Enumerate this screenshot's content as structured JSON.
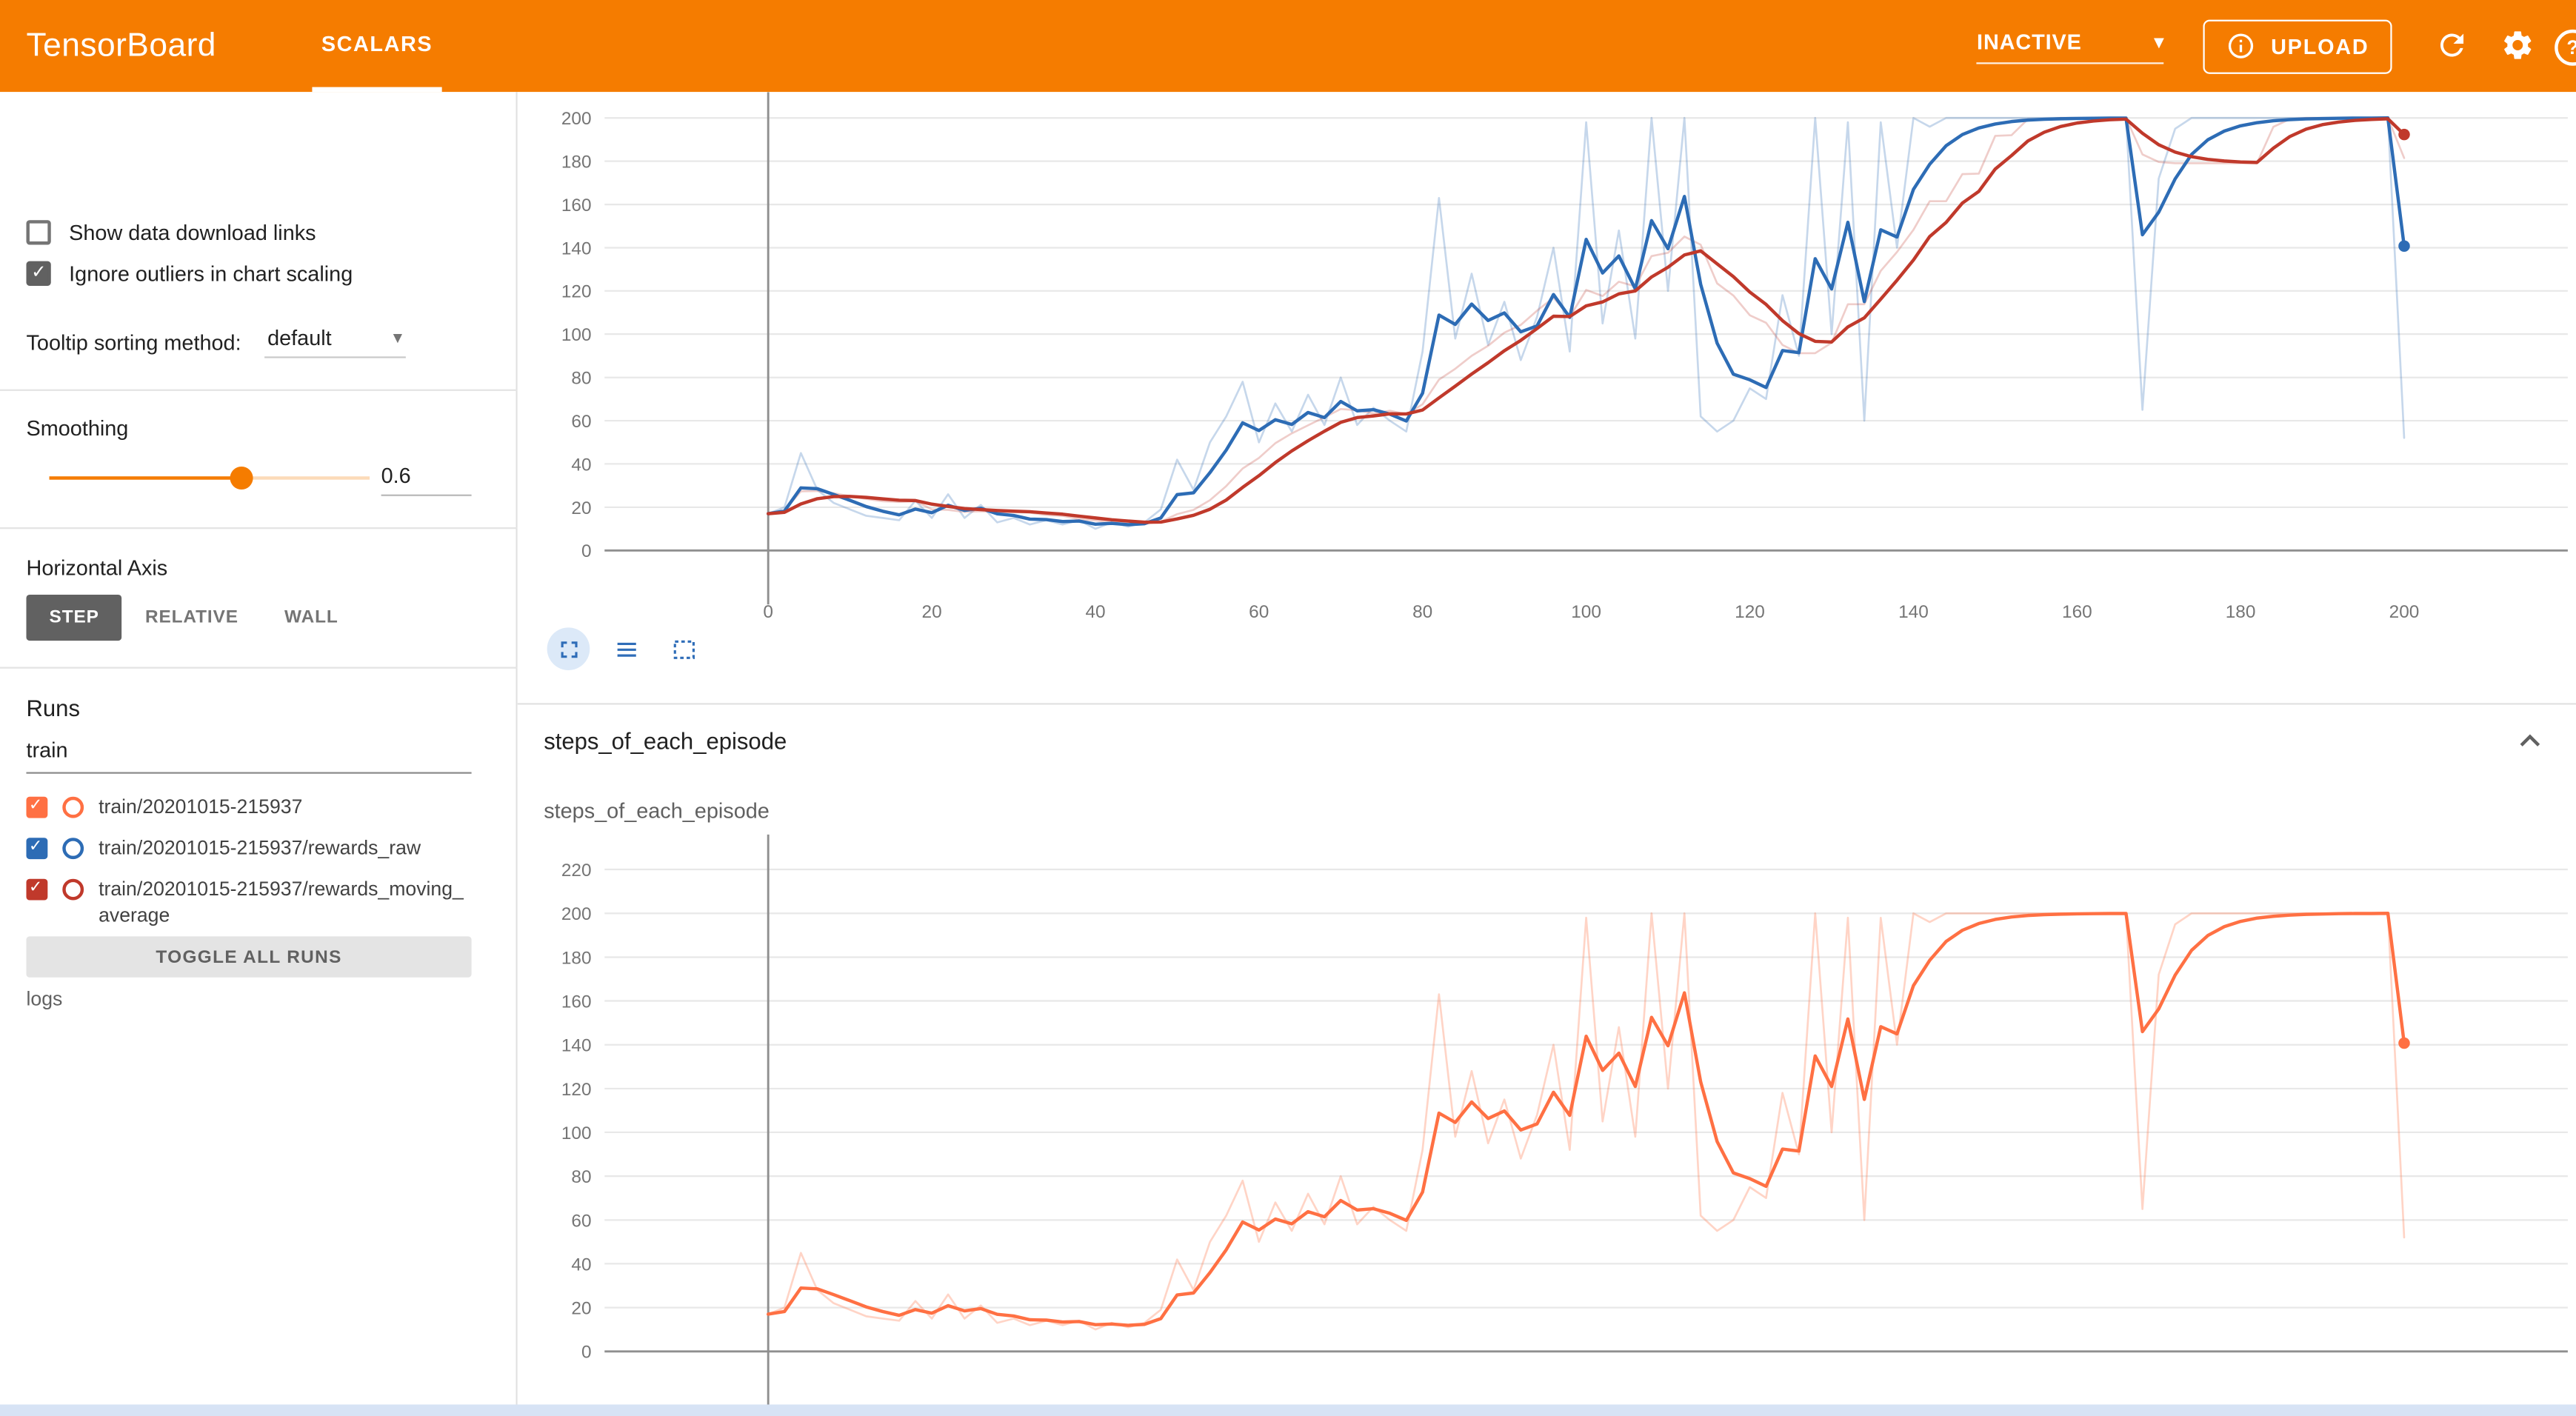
{
  "header": {
    "title": "TensorBoard",
    "tabs": [
      {
        "label": "SCALARS",
        "active": true
      }
    ],
    "status_dropdown": {
      "value": "INACTIVE"
    },
    "upload_button": "UPLOAD",
    "colors": {
      "bar_bg": "#f57c00",
      "bar_text": "#ffffff"
    }
  },
  "sidebar": {
    "show_download_links": {
      "label": "Show data download links",
      "checked": false
    },
    "ignore_outliers": {
      "label": "Ignore outliers in chart scaling",
      "checked": true
    },
    "tooltip_sorting": {
      "label": "Tooltip sorting method:",
      "value": "default"
    },
    "smoothing": {
      "label": "Smoothing",
      "value": "0.6",
      "fraction": 0.6
    },
    "horizontal_axis": {
      "label": "Horizontal Axis",
      "options": [
        "STEP",
        "RELATIVE",
        "WALL"
      ],
      "selected": "STEP"
    },
    "runs": {
      "label": "Runs",
      "filter_value": "train",
      "items": [
        {
          "label": "train/20201015-215937",
          "color": "#ff7043",
          "checked": true
        },
        {
          "label": "train/20201015-215937/rewards_raw",
          "color": "#2d6cb5",
          "checked": true
        },
        {
          "label": "train/20201015-215937/rewards_moving_average",
          "color": "#c0392b",
          "checked": true
        }
      ],
      "toggle_all_label": "TOGGLE ALL RUNS"
    },
    "footer_text": "logs"
  },
  "main": {
    "section_title": "steps_of_each_episode",
    "card_title": "steps_of_each_episode"
  },
  "icons": {
    "caret": "▾",
    "checkmark": "✓",
    "help": "?"
  },
  "chart_data": [
    {
      "type": "line",
      "title": "",
      "xlim": [
        -20,
        220
      ],
      "ylim": [
        -25,
        212
      ],
      "xticks": [
        0,
        20,
        40,
        60,
        80,
        100,
        120,
        140,
        160,
        180,
        200
      ],
      "yticks": [
        0,
        20,
        40,
        60,
        80,
        100,
        120,
        140,
        160,
        180,
        200
      ],
      "show_x_labels": true,
      "grid": true,
      "legend": "none",
      "smoothing": 0.6,
      "x": [
        0,
        2,
        4,
        6,
        8,
        10,
        12,
        14,
        16,
        18,
        20,
        22,
        24,
        26,
        28,
        30,
        32,
        34,
        36,
        38,
        40,
        42,
        44,
        46,
        48,
        50,
        52,
        54,
        56,
        58,
        60,
        62,
        64,
        66,
        68,
        70,
        72,
        74,
        76,
        78,
        80,
        82,
        84,
        86,
        88,
        90,
        92,
        94,
        96,
        98,
        100,
        102,
        104,
        106,
        108,
        110,
        112,
        114,
        116,
        118,
        120,
        122,
        124,
        126,
        128,
        130,
        132,
        134,
        136,
        138,
        140,
        142,
        144,
        146,
        148,
        150,
        152,
        154,
        156,
        158,
        160,
        162,
        164,
        166,
        168,
        170,
        172,
        174,
        176,
        178,
        180,
        182,
        184,
        186,
        188,
        190,
        192,
        194,
        196,
        198,
        200
      ],
      "raw_y": [
        17,
        20,
        45,
        28,
        22,
        19,
        16,
        15,
        14,
        23,
        15,
        26,
        15,
        21,
        13,
        15,
        12,
        14,
        12,
        14,
        10,
        13,
        11,
        13,
        19,
        42,
        28,
        50,
        62,
        78,
        50,
        68,
        55,
        72,
        58,
        80,
        58,
        66,
        60,
        55,
        92,
        163,
        98,
        128,
        95,
        115,
        88,
        108,
        140,
        92,
        198,
        105,
        148,
        98,
        200,
        120,
        200,
        62,
        55,
        60,
        75,
        70,
        118,
        90,
        200,
        100,
        198,
        60,
        198,
        140,
        200,
        196,
        200,
        200,
        200,
        200,
        200,
        200,
        200,
        200,
        200,
        200,
        200,
        200,
        65,
        172,
        195,
        200,
        200,
        200,
        200,
        200,
        200,
        200,
        200,
        200,
        200,
        200,
        200,
        200,
        52
      ],
      "series": [
        {
          "name": "train/20201015-215937/rewards_raw (unsmoothed)",
          "color": "#2d6cb5",
          "opacity": 0.27,
          "width": 1.2
        },
        {
          "name": "train/20201015-215937/rewards_moving_average (unsmoothed)",
          "color": "#c0392b",
          "opacity": 0.25,
          "width": 1.2,
          "window": 8
        },
        {
          "name": "train/20201015-215937/rewards_raw",
          "color": "#2d6cb5",
          "opacity": 1,
          "width": 2,
          "smoothed": true,
          "end_dot": true
        },
        {
          "name": "train/20201015-215937/rewards_moving_average",
          "color": "#c0392b",
          "opacity": 1,
          "width": 2,
          "window": 8,
          "smoothed": true,
          "end_dot": true
        }
      ]
    },
    {
      "type": "line",
      "title": "steps_of_each_episode",
      "xlim": [
        -20,
        220
      ],
      "ylim": [
        -28,
        236
      ],
      "xticks": [
        0,
        20,
        40,
        60,
        80,
        100,
        120,
        140,
        160,
        180,
        200
      ],
      "yticks": [
        0,
        20,
        40,
        60,
        80,
        100,
        120,
        140,
        160,
        180,
        200,
        220
      ],
      "show_x_labels": false,
      "grid": true,
      "legend": "none",
      "smoothing": 0.6,
      "x": [
        0,
        2,
        4,
        6,
        8,
        10,
        12,
        14,
        16,
        18,
        20,
        22,
        24,
        26,
        28,
        30,
        32,
        34,
        36,
        38,
        40,
        42,
        44,
        46,
        48,
        50,
        52,
        54,
        56,
        58,
        60,
        62,
        64,
        66,
        68,
        70,
        72,
        74,
        76,
        78,
        80,
        82,
        84,
        86,
        88,
        90,
        92,
        94,
        96,
        98,
        100,
        102,
        104,
        106,
        108,
        110,
        112,
        114,
        116,
        118,
        120,
        122,
        124,
        126,
        128,
        130,
        132,
        134,
        136,
        138,
        140,
        142,
        144,
        146,
        148,
        150,
        152,
        154,
        156,
        158,
        160,
        162,
        164,
        166,
        168,
        170,
        172,
        174,
        176,
        178,
        180,
        182,
        184,
        186,
        188,
        190,
        192,
        194,
        196,
        198,
        200
      ],
      "raw_y": [
        17,
        20,
        45,
        28,
        22,
        19,
        16,
        15,
        14,
        23,
        15,
        26,
        15,
        21,
        13,
        15,
        12,
        14,
        12,
        14,
        10,
        13,
        11,
        13,
        19,
        42,
        28,
        50,
        62,
        78,
        50,
        68,
        55,
        72,
        58,
        80,
        58,
        66,
        60,
        55,
        92,
        163,
        98,
        128,
        95,
        115,
        88,
        108,
        140,
        92,
        198,
        105,
        148,
        98,
        200,
        120,
        200,
        62,
        55,
        60,
        75,
        70,
        118,
        90,
        200,
        100,
        198,
        60,
        198,
        140,
        200,
        196,
        200,
        200,
        200,
        200,
        200,
        200,
        200,
        200,
        200,
        200,
        200,
        200,
        65,
        172,
        195,
        200,
        200,
        200,
        200,
        200,
        200,
        200,
        200,
        200,
        200,
        200,
        200,
        200,
        52
      ],
      "series": [
        {
          "name": "train/20201015-215937 (unsmoothed)",
          "color": "#ff7043",
          "opacity": 0.3,
          "width": 1.2
        },
        {
          "name": "train/20201015-215937",
          "color": "#ff7043",
          "opacity": 1,
          "width": 2,
          "smoothed": true,
          "end_dot": true
        }
      ]
    }
  ]
}
